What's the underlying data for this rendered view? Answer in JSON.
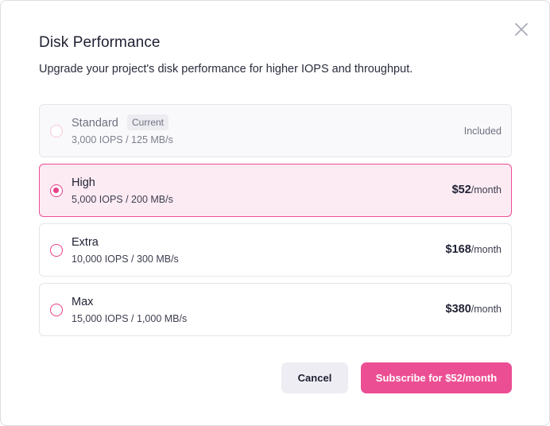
{
  "dialog": {
    "title": "Disk Performance",
    "subtitle": "Upgrade your project's disk performance for higher IOPS and throughput.",
    "close_icon": "close-icon"
  },
  "options": [
    {
      "name": "Standard",
      "badge": "Current",
      "spec": "3,000 IOPS / 125 MB/s",
      "price_label": "Included",
      "state": "current"
    },
    {
      "name": "High",
      "spec": "5,000 IOPS / 200 MB/s",
      "price": "$52",
      "period": "/month",
      "state": "selected"
    },
    {
      "name": "Extra",
      "spec": "10,000 IOPS / 300 MB/s",
      "price": "$168",
      "period": "/month",
      "state": "default"
    },
    {
      "name": "Max",
      "spec": "15,000 IOPS / 1,000 MB/s",
      "price": "$380",
      "period": "/month",
      "state": "default"
    }
  ],
  "actions": {
    "cancel_label": "Cancel",
    "subscribe_label": "Subscribe for $52/month"
  },
  "colors": {
    "accent": "#ec4e93",
    "selected_bg": "#fdebf3",
    "muted_button_bg": "#ededf3"
  }
}
